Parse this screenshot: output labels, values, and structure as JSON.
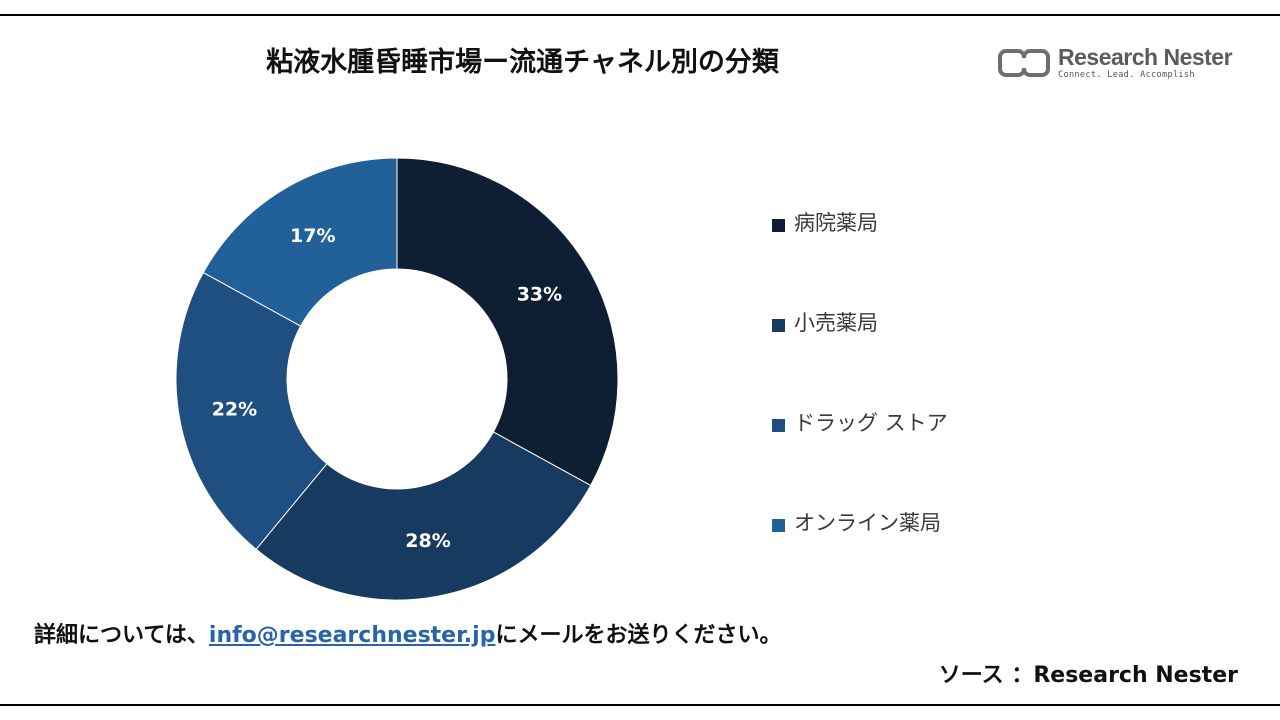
{
  "title": "粘液水腫昏睡市場ー流通チャネル別の分類",
  "logo": {
    "name": "Research Nester",
    "tagline": "Connect. Lead. Accomplish"
  },
  "chart_data": {
    "type": "pie",
    "variant": "donut",
    "categories": [
      "病院薬局",
      "小売薬局",
      "ドラッグ ストア",
      "オンライン薬局"
    ],
    "values": [
      33,
      28,
      22,
      17
    ],
    "value_labels": [
      "33%",
      "28%",
      "22%",
      "17%"
    ],
    "colors": [
      "#0e1f33",
      "#163a60",
      "#1f4e80",
      "#22609a"
    ],
    "legend_position": "right",
    "title": "粘液水腫昏睡市場ー流通チャネル別の分類"
  },
  "footer": {
    "prefix": "詳細については、",
    "email": "info@researchnester.jp",
    "suffix": "にメールをお送りください。"
  },
  "source": "ソース ：Research Nester"
}
